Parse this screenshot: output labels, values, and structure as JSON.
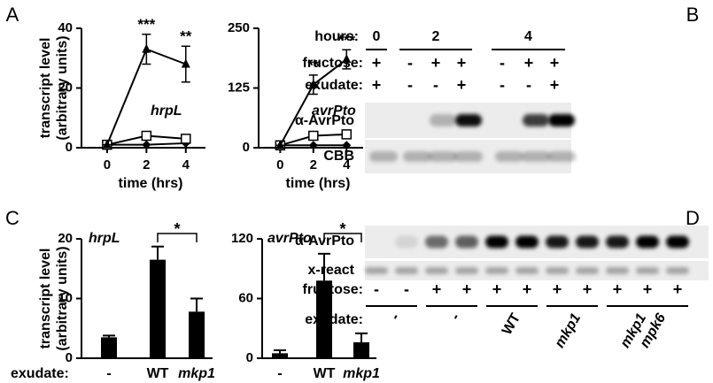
{
  "panel_labels": [
    "A",
    "B",
    "C",
    "D"
  ],
  "chart_data": [
    {
      "type": "line",
      "y_label": [
        "transcript level",
        "(arbitrary units)"
      ],
      "x_label": "time (hrs)",
      "gene": "hrpL",
      "x": [
        0,
        2,
        4
      ],
      "xlim": [
        -1.3,
        5
      ],
      "xticks": [
        0,
        2,
        4
      ],
      "ylim": [
        0,
        40
      ],
      "yticks": [
        0,
        20,
        40
      ],
      "series": [
        {
          "marker": "triangle",
          "color": "#000000",
          "values": [
            1,
            33,
            28
          ],
          "errors": [
            0,
            5,
            6
          ],
          "significance": [
            null,
            "***",
            "**"
          ]
        },
        {
          "marker": "square",
          "color": "#000000",
          "values": [
            1,
            4,
            3
          ]
        },
        {
          "marker": "diamond",
          "color": "#000000",
          "values": [
            1,
            1,
            1.5
          ]
        }
      ]
    },
    {
      "type": "line",
      "x_label": "time (hrs)",
      "gene": "avrPto",
      "x": [
        0,
        2,
        4
      ],
      "xlim": [
        -1.3,
        5
      ],
      "xticks": [
        0,
        2,
        4
      ],
      "ylim": [
        0,
        250
      ],
      "yticks": [
        0,
        125,
        250
      ],
      "series": [
        {
          "marker": "triangle",
          "color": "#000000",
          "values": [
            5,
            132,
            185
          ],
          "errors": [
            0,
            20,
            20
          ],
          "significance": [
            null,
            "**",
            "***"
          ]
        },
        {
          "marker": "square",
          "color": "#000000",
          "values": [
            5,
            25,
            28
          ]
        },
        {
          "marker": "diamond",
          "color": "#000000",
          "values": [
            5,
            5,
            5
          ]
        }
      ]
    },
    {
      "type": "bar",
      "y_label": [
        "transcript level",
        "(arbitrary units)"
      ],
      "gene": "hrpL",
      "x_label": "exudate:",
      "categories": [
        "-",
        "WT",
        "mkp1"
      ],
      "category_italic": [
        false,
        false,
        true
      ],
      "values": [
        3.5,
        16.5,
        7.8
      ],
      "errors": [
        0.3,
        2.2,
        2.2
      ],
      "color": "#000000",
      "ylim": [
        0,
        20
      ],
      "yticks": [
        0,
        10,
        20
      ],
      "bracket": {
        "text": "*",
        "between": [
          "WT",
          "mkp1"
        ]
      }
    },
    {
      "type": "bar",
      "gene": "avrPto",
      "categories": [
        "-",
        "WT",
        "mkp1"
      ],
      "category_italic": [
        false,
        false,
        true
      ],
      "values": [
        5,
        78,
        16
      ],
      "errors": [
        3,
        27,
        9
      ],
      "color": "#000000",
      "ylim": [
        0,
        120
      ],
      "yticks": [
        0,
        60,
        120
      ],
      "bracket": {
        "text": "*",
        "between": [
          "WT",
          "mkp1"
        ]
      }
    }
  ],
  "blot_b": {
    "hours_label": "hours:",
    "hours": [
      "0",
      "2",
      "4"
    ],
    "rows": [
      {
        "label": "fructose:",
        "signs": [
          "+",
          "-",
          "+",
          "+",
          "-",
          "+",
          "+"
        ]
      },
      {
        "label": "exudate:",
        "signs": [
          "+",
          "-",
          "-",
          "+",
          "-",
          "-",
          "+"
        ]
      }
    ],
    "blot_labels": [
      "α-AvrPto",
      "CBB"
    ]
  },
  "blot_d": {
    "blot_labels": [
      "α-AvrPto",
      "x-react"
    ],
    "fructose_label": "fructose:",
    "fructose": [
      "-",
      "-",
      "+",
      "+",
      "+",
      "+",
      "+",
      "+",
      "+",
      "+",
      "+"
    ],
    "exudate_label": "exudate:",
    "exudate": [
      [
        "-"
      ],
      [
        "-"
      ],
      [
        "WT"
      ],
      [
        "mkp1"
      ],
      [
        "mkp1",
        "mpk6"
      ]
    ]
  }
}
